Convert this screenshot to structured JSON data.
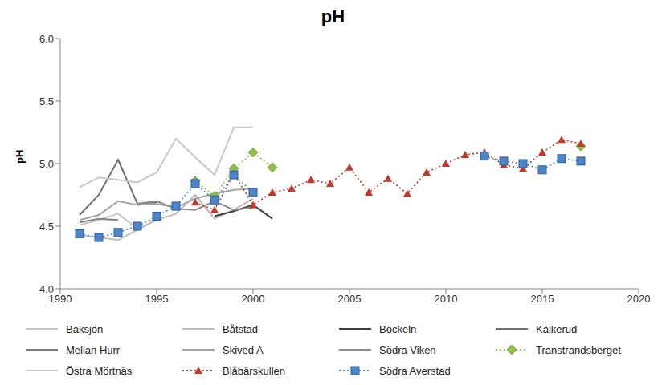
{
  "chart_data": {
    "type": "line",
    "title": "pH",
    "y_label": "pH",
    "x": [
      1991,
      1992,
      1993,
      1994,
      1995,
      1996,
      1997,
      1998,
      1999,
      2000,
      2001,
      2002,
      2003,
      2004,
      2005,
      2006,
      2007,
      2008,
      2009,
      2010,
      2011,
      2012,
      2013,
      2014,
      2015,
      2016,
      2017
    ],
    "xlim": [
      1990,
      2020
    ],
    "xticks": [
      1990,
      1995,
      2000,
      2005,
      2010,
      2015,
      2020
    ],
    "ylim": [
      4,
      6
    ],
    "yticks": [
      {
        "value": 4,
        "label": "4.0"
      },
      {
        "value": 4.5,
        "label": "4.5"
      },
      {
        "value": 5,
        "label": "5.0"
      },
      {
        "value": 5.5,
        "label": "5.5"
      },
      {
        "value": 6,
        "label": "6.0"
      }
    ],
    "grid": false,
    "legend": "bottom",
    "series": [
      {
        "name": "Baksjön",
        "color": "#c8c8c8",
        "marker": "none",
        "line_style": "solid",
        "values": [
          4.51,
          4.55,
          4.6,
          4.48,
          4.55,
          null,
          null,
          null,
          null,
          null,
          null,
          null,
          null,
          null,
          null,
          null,
          null,
          null,
          null,
          null,
          null,
          null,
          null,
          null,
          null,
          null,
          null
        ]
      },
      {
        "name": "Båtstad",
        "color": "#bdbdbd",
        "marker": "none",
        "line_style": "solid",
        "values": [
          4.43,
          4.41,
          4.39,
          4.47,
          4.55,
          4.6,
          4.75,
          4.56,
          4.63,
          4.72,
          null,
          null,
          null,
          null,
          null,
          null,
          null,
          null,
          null,
          null,
          null,
          null,
          null,
          null,
          null,
          null,
          null
        ]
      },
      {
        "name": "Böckeln",
        "color": "#404040",
        "marker": "none",
        "line_style": "solid",
        "values": [
          null,
          null,
          null,
          null,
          null,
          null,
          null,
          4.58,
          4.62,
          4.67,
          4.56,
          null,
          null,
          null,
          null,
          null,
          null,
          null,
          null,
          null,
          null,
          null,
          null,
          null,
          null,
          null,
          null
        ]
      },
      {
        "name": "Kälkerud",
        "color": "#707070",
        "marker": "none",
        "line_style": "solid",
        "values": [
          4.59,
          4.75,
          5.03,
          4.68,
          4.69,
          null,
          null,
          null,
          null,
          null,
          null,
          null,
          null,
          null,
          null,
          null,
          null,
          null,
          null,
          null,
          null,
          null,
          null,
          null,
          null,
          null,
          null
        ]
      },
      {
        "name": "Mellan Hurr",
        "color": "#808080",
        "marker": "none",
        "line_style": "solid",
        "values": [
          4.53,
          4.56,
          4.55,
          null,
          null,
          null,
          null,
          null,
          null,
          null,
          null,
          null,
          null,
          null,
          null,
          null,
          null,
          null,
          null,
          null,
          null,
          null,
          null,
          null,
          null,
          null,
          null
        ]
      },
      {
        "name": "Skived A",
        "color": "#a6a6a6",
        "marker": "none",
        "line_style": "solid",
        "values": [
          4.55,
          4.59,
          4.7,
          4.67,
          4.68,
          4.65,
          4.72,
          4.76,
          4.79,
          4.8,
          null,
          null,
          null,
          null,
          null,
          null,
          null,
          null,
          null,
          null,
          null,
          null,
          null,
          null,
          null,
          null,
          null
        ]
      },
      {
        "name": "Södra Viken",
        "color": "#8c8c8c",
        "marker": "none",
        "line_style": "solid",
        "values": [
          null,
          null,
          null,
          4.68,
          4.7,
          4.64,
          4.63,
          4.7,
          4.63,
          4.65,
          null,
          null,
          null,
          null,
          null,
          null,
          null,
          null,
          null,
          null,
          null,
          null,
          null,
          null,
          null,
          null,
          null
        ]
      },
      {
        "name": "Transtrandsberget",
        "color": "#8fc04a",
        "marker": "diamond",
        "line_style": "dotted",
        "values": [
          null,
          null,
          null,
          null,
          null,
          null,
          4.86,
          4.74,
          4.96,
          5.09,
          4.97,
          null,
          null,
          null,
          null,
          null,
          null,
          null,
          null,
          null,
          null,
          null,
          null,
          null,
          null,
          null,
          5.14
        ]
      },
      {
        "name": "Östra Mörtnäs",
        "color": "#c8c8c8",
        "marker": "none",
        "line_style": "solid",
        "values": [
          4.81,
          4.89,
          4.87,
          4.85,
          4.93,
          5.2,
          5.05,
          4.91,
          5.29,
          5.29,
          null,
          null,
          null,
          null,
          null,
          null,
          null,
          null,
          null,
          null,
          null,
          null,
          null,
          null,
          null,
          null,
          null
        ]
      },
      {
        "name": "Blåbärskullen",
        "color": "#c0392b",
        "marker": "triangle",
        "line_style": "dotted",
        "values": [
          null,
          null,
          null,
          null,
          null,
          null,
          4.69,
          4.63,
          4.92,
          4.67,
          4.77,
          4.8,
          4.87,
          4.84,
          4.97,
          4.77,
          4.88,
          4.76,
          4.93,
          5.0,
          5.07,
          5.09,
          4.99,
          4.96,
          5.09,
          5.19,
          5.16
        ]
      },
      {
        "name": "Södra Averstad",
        "color": "#4a86c8",
        "marker": "square",
        "line_style": "dotted",
        "values": [
          4.44,
          4.41,
          4.45,
          4.5,
          4.58,
          4.66,
          4.84,
          4.71,
          4.91,
          4.77,
          null,
          null,
          null,
          null,
          null,
          null,
          null,
          null,
          null,
          null,
          null,
          5.06,
          5.02,
          5.0,
          4.95,
          5.04,
          5.02
        ]
      }
    ]
  }
}
